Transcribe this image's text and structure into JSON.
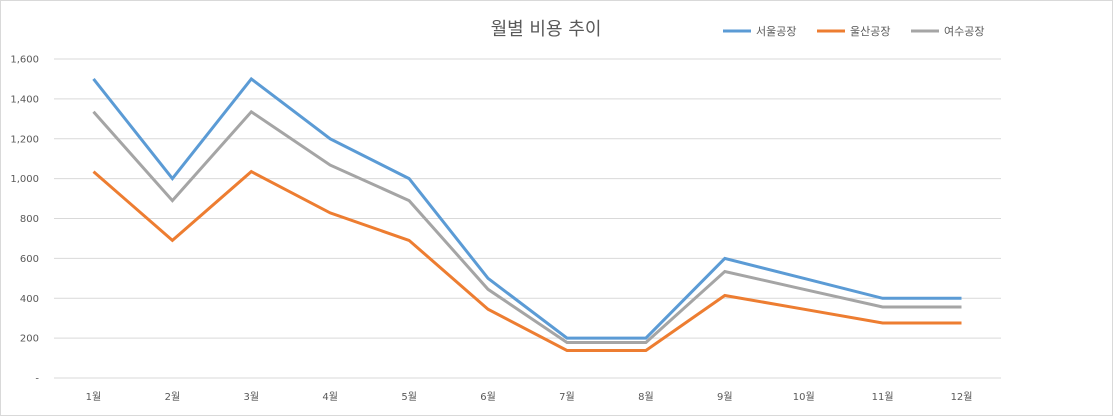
{
  "chart_data": {
    "type": "line",
    "title": "월별 비용 추이",
    "categories": [
      "1월",
      "2월",
      "3월",
      "4월",
      "5월",
      "6월",
      "7월",
      "8월",
      "9월",
      "10월",
      "11월",
      "12월"
    ],
    "y_ticks": [
      "-",
      "200",
      "400",
      "600",
      "800",
      "1,000",
      "1,200",
      "1,400",
      "1,600"
    ],
    "ylim": [
      0,
      1600
    ],
    "grid": true,
    "legend_position": "top-right",
    "series": [
      {
        "name": "서울공장",
        "color": "#5b9bd5",
        "values": [
          1500,
          1000,
          1500,
          1200,
          1000,
          500,
          200,
          200,
          600,
          500,
          400,
          400
        ]
      },
      {
        "name": "울산공장",
        "color": "#ed7d31",
        "values": [
          1035,
          690,
          1035,
          828,
          690,
          345,
          138,
          138,
          414,
          345,
          276,
          276
        ]
      },
      {
        "name": "여수공장",
        "color": "#a5a5a5",
        "values": [
          1335,
          890,
          1335,
          1068,
          890,
          445,
          178,
          178,
          534,
          445,
          356,
          356
        ]
      }
    ]
  }
}
